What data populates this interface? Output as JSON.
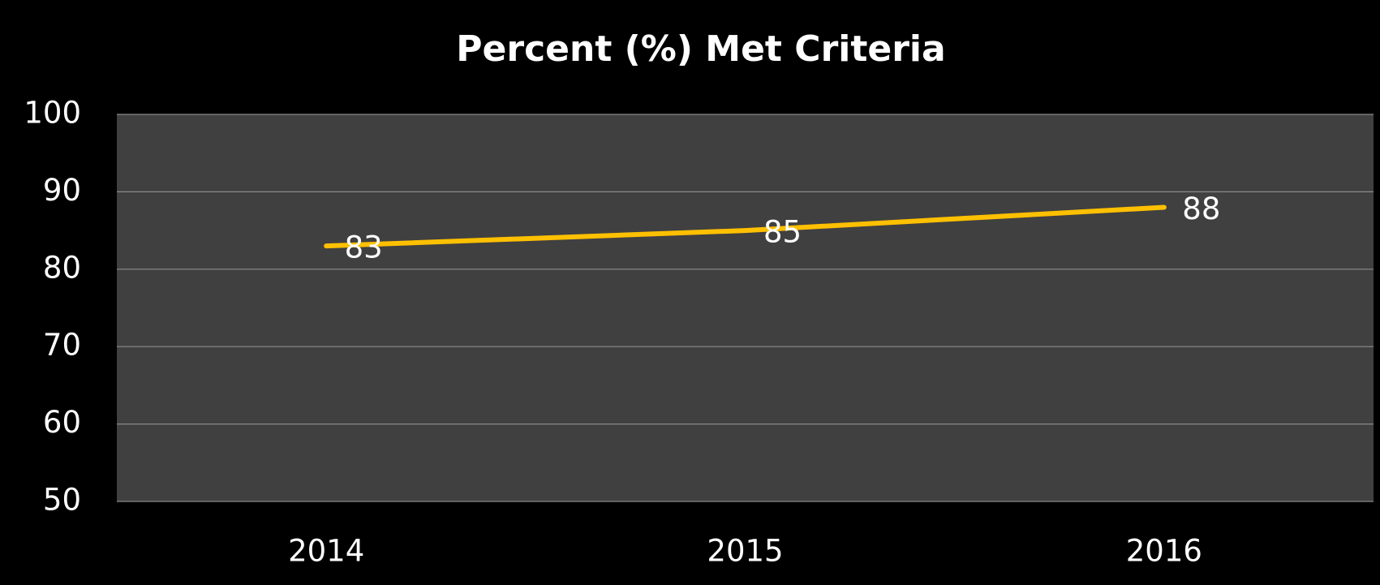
{
  "chart_data": {
    "type": "line",
    "title": "Percent (%) Met Criteria",
    "categories": [
      "2014",
      "2015",
      "2016"
    ],
    "series": [
      {
        "name": "Percent Met Criteria",
        "color": "#ffc000",
        "values": [
          83,
          85,
          88
        ]
      }
    ],
    "ylim": [
      50,
      100
    ],
    "yticks": [
      50,
      60,
      70,
      80,
      90,
      100
    ],
    "grid": true
  }
}
